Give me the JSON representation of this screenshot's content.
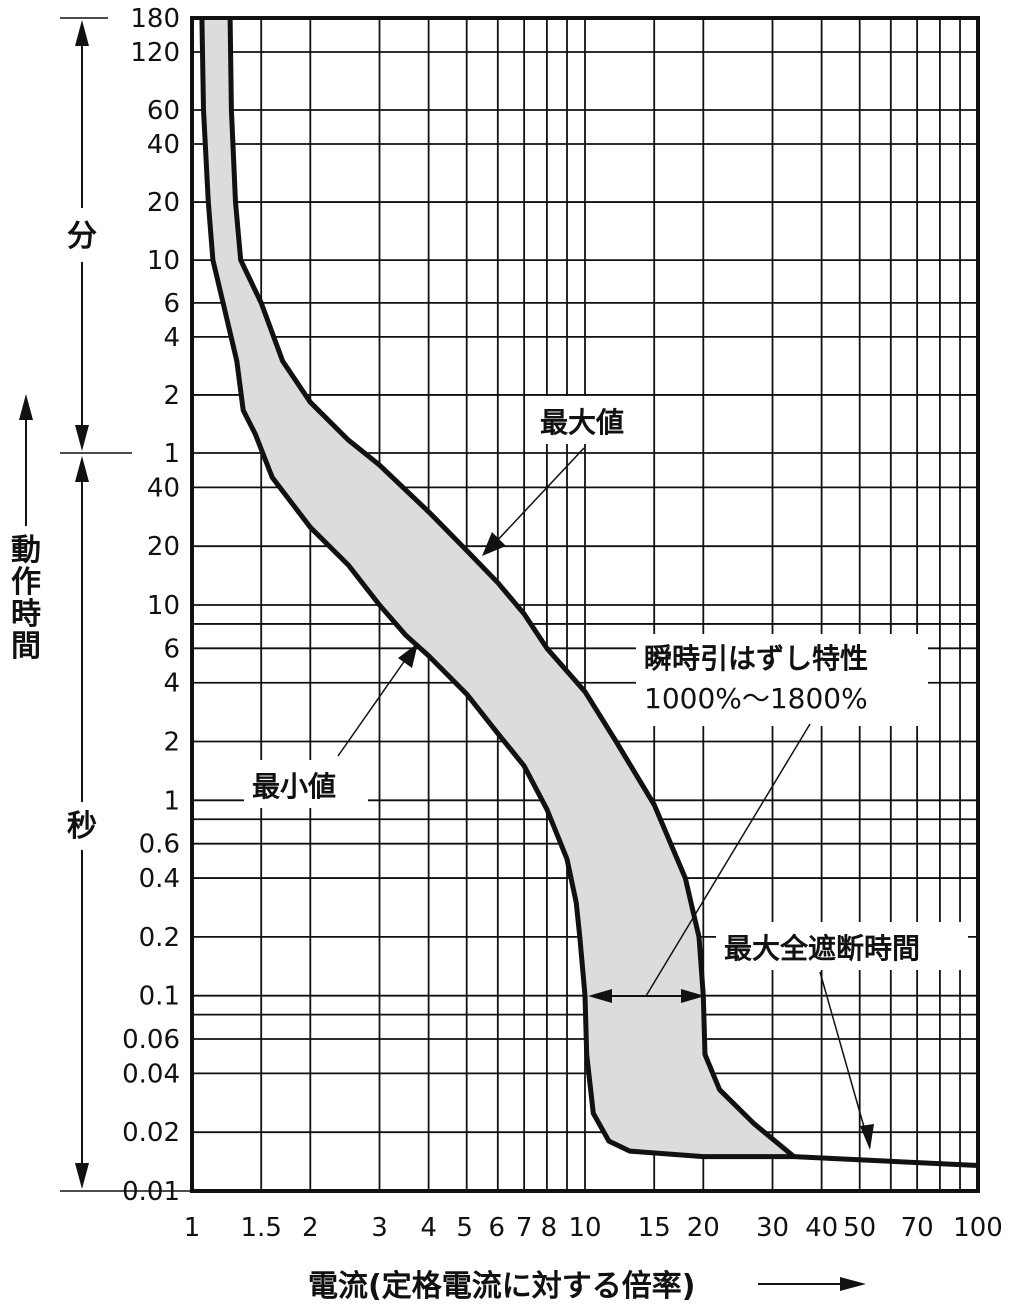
{
  "chart_data": {
    "type": "line",
    "xscale": "log",
    "yscale": "log",
    "grid": true,
    "xlim": [
      1,
      100
    ],
    "ylim_seconds": [
      0.01,
      10800
    ],
    "xlabel": "電流(定格電流に対する倍率)",
    "ylabel": "動作時間",
    "x_ticks": [
      {
        "v": 1,
        "t": "1"
      },
      {
        "v": 1.5,
        "t": "1.5"
      },
      {
        "v": 2,
        "t": "2"
      },
      {
        "v": 3,
        "t": "3"
      },
      {
        "v": 4,
        "t": "4"
      },
      {
        "v": 5,
        "t": "5"
      },
      {
        "v": 6,
        "t": "6"
      },
      {
        "v": 7,
        "t": "7"
      },
      {
        "v": 8,
        "t": "8"
      },
      {
        "v": 10,
        "t": "10"
      },
      {
        "v": 15,
        "t": "15"
      },
      {
        "v": 20,
        "t": "20"
      },
      {
        "v": 30,
        "t": "30"
      },
      {
        "v": 40,
        "t": "40"
      },
      {
        "v": 50,
        "t": "50"
      },
      {
        "v": 70,
        "t": "70"
      },
      {
        "v": 100,
        "t": "100"
      }
    ],
    "x_gridlines": [
      1.5,
      2,
      3,
      4,
      5,
      6,
      7,
      8,
      9,
      10,
      15,
      20,
      30,
      40,
      50,
      60,
      70,
      80,
      90
    ],
    "y_ticks_minutes": [
      {
        "v": 10800,
        "t": "180"
      },
      {
        "v": 7200,
        "t": "120"
      },
      {
        "v": 3600,
        "t": "60"
      },
      {
        "v": 2400,
        "t": "40"
      },
      {
        "v": 1200,
        "t": "20"
      },
      {
        "v": 600,
        "t": "10"
      },
      {
        "v": 360,
        "t": "6"
      },
      {
        "v": 240,
        "t": "4"
      },
      {
        "v": 120,
        "t": "2"
      },
      {
        "v": 60,
        "t": "1"
      }
    ],
    "y_ticks_seconds": [
      {
        "v": 40,
        "t": "40"
      },
      {
        "v": 20,
        "t": "20"
      },
      {
        "v": 10,
        "t": "10"
      },
      {
        "v": 6,
        "t": "6"
      },
      {
        "v": 4,
        "t": "4"
      },
      {
        "v": 2,
        "t": "2"
      },
      {
        "v": 1,
        "t": "1"
      },
      {
        "v": 0.6,
        "t": "0.6"
      },
      {
        "v": 0.4,
        "t": "0.4"
      },
      {
        "v": 0.2,
        "t": "0.2"
      },
      {
        "v": 0.1,
        "t": "0.1"
      },
      {
        "v": 0.06,
        "t": "0.06"
      },
      {
        "v": 0.04,
        "t": "0.04"
      },
      {
        "v": 0.02,
        "t": "0.02"
      },
      {
        "v": 0.01,
        "t": "0.01"
      }
    ],
    "y_gridlines": [
      10800,
      7200,
      3600,
      2400,
      1200,
      600,
      360,
      240,
      120,
      60,
      40,
      20,
      10,
      8,
      6,
      4,
      2,
      1,
      0.8,
      0.6,
      0.4,
      0.2,
      0.1,
      0.08,
      0.06,
      0.04,
      0.02
    ],
    "y_unit_labels": {
      "minutes": "分",
      "seconds": "秒"
    },
    "series": [
      {
        "name": "最大値",
        "points": [
          [
            1.25,
            10800
          ],
          [
            1.26,
            3600
          ],
          [
            1.29,
            1200
          ],
          [
            1.33,
            600
          ],
          [
            1.5,
            360
          ],
          [
            1.7,
            180
          ],
          [
            2.0,
            110
          ],
          [
            2.5,
            70
          ],
          [
            3.0,
            52
          ],
          [
            4.0,
            30
          ],
          [
            5.0,
            19
          ],
          [
            6.0,
            13
          ],
          [
            7.0,
            9.0
          ],
          [
            8.0,
            6.0
          ],
          [
            10.0,
            3.6
          ],
          [
            12.0,
            2.0
          ],
          [
            15.0,
            0.95
          ],
          [
            18.0,
            0.4
          ],
          [
            19.5,
            0.2
          ],
          [
            20.0,
            0.1
          ],
          [
            20.2,
            0.05
          ],
          [
            22.0,
            0.033
          ],
          [
            27.0,
            0.022
          ],
          [
            34.0,
            0.015
          ]
        ]
      },
      {
        "name": "最小値",
        "points": [
          [
            1.06,
            10800
          ],
          [
            1.07,
            3600
          ],
          [
            1.1,
            1200
          ],
          [
            1.13,
            600
          ],
          [
            1.2,
            360
          ],
          [
            1.3,
            180
          ],
          [
            1.35,
            100
          ],
          [
            1.45,
            75
          ],
          [
            1.6,
            45
          ],
          [
            2.0,
            25
          ],
          [
            2.5,
            16
          ],
          [
            3.0,
            10
          ],
          [
            3.5,
            7.0
          ],
          [
            4.0,
            5.5
          ],
          [
            5.0,
            3.5
          ],
          [
            6.0,
            2.2
          ],
          [
            7.0,
            1.5
          ],
          [
            8.0,
            0.9
          ],
          [
            9.0,
            0.5
          ],
          [
            9.5,
            0.3
          ],
          [
            9.7,
            0.2
          ],
          [
            10.0,
            0.1
          ],
          [
            10.1,
            0.05
          ],
          [
            10.5,
            0.025
          ],
          [
            11.5,
            0.018
          ],
          [
            13.0,
            0.016
          ],
          [
            20.0,
            0.015
          ],
          [
            34.0,
            0.015
          ],
          [
            100.0,
            0.0135
          ]
        ]
      }
    ],
    "annotations": {
      "max_label": "最大値",
      "min_label": "最小値",
      "instant_label": "瞬時引はずし特性",
      "instant_range": "1000%〜1800%",
      "interrupt_label": "最大全遮断時間"
    }
  }
}
